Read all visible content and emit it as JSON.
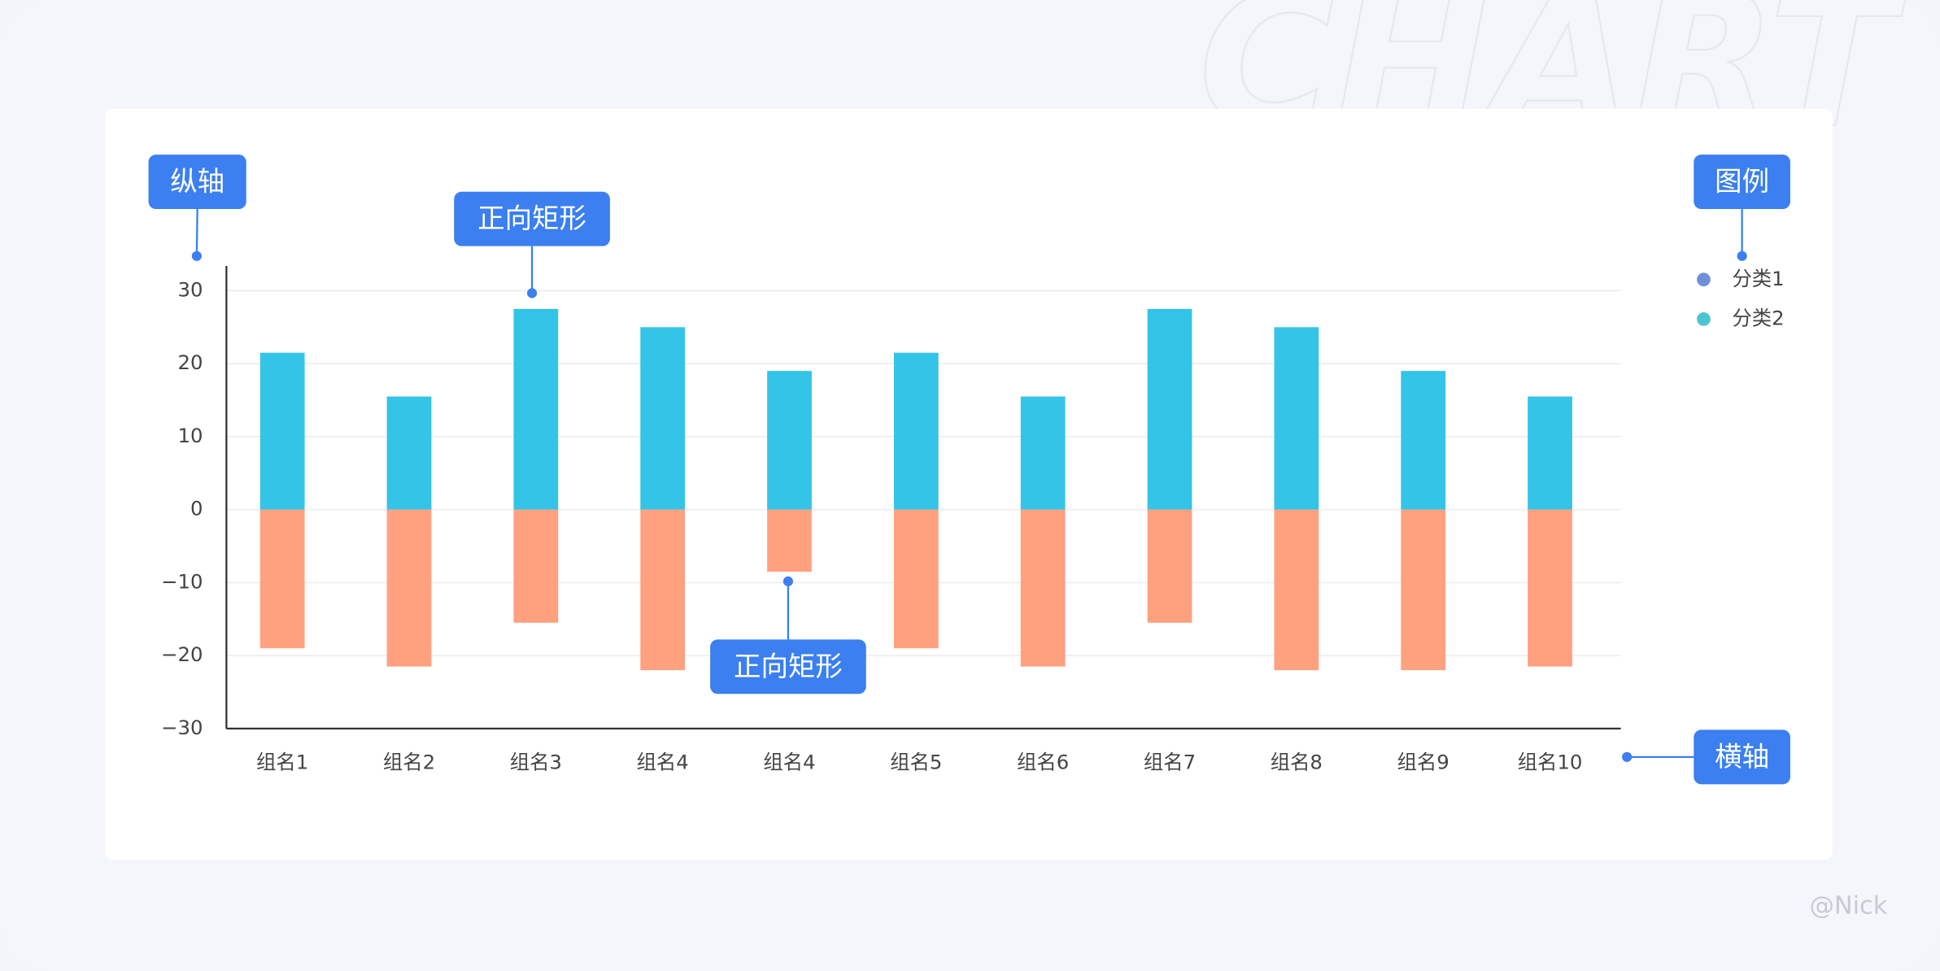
{
  "chart_data": {
    "type": "bar",
    "stacked": true,
    "categories": [
      "组名1",
      "组名2",
      "组名3",
      "组名4",
      "组名4",
      "组名5",
      "组名6",
      "组名7",
      "组名8",
      "组名9",
      "组名10"
    ],
    "series": [
      {
        "name": "分类1",
        "color": "#33c4e8",
        "legend_color": "#6f8fd8",
        "values": [
          21.5,
          15.5,
          27.5,
          25,
          19,
          21.5,
          15.5,
          27.5,
          25,
          19,
          15.5
        ]
      },
      {
        "name": "分类2",
        "color": "#ffa07f",
        "legend_color": "#4dc4d4",
        "values": [
          -19,
          -21.5,
          -15.5,
          -22,
          -8.5,
          -19,
          -21.5,
          -15.5,
          -22,
          -22,
          -21.5
        ]
      }
    ],
    "ylim": [
      -30,
      30
    ],
    "yticks": [
      {
        "value": -30,
        "label": "−30"
      },
      {
        "value": -20,
        "label": "−20"
      },
      {
        "value": -10,
        "label": "−10"
      },
      0,
      10,
      20,
      30
    ],
    "grid": true,
    "legend": "top-right",
    "annotations": [
      "纵轴",
      "正向矩形",
      "图例",
      "正向矩形",
      "横轴"
    ],
    "watermark": "CHART",
    "credit": "@Nick"
  }
}
